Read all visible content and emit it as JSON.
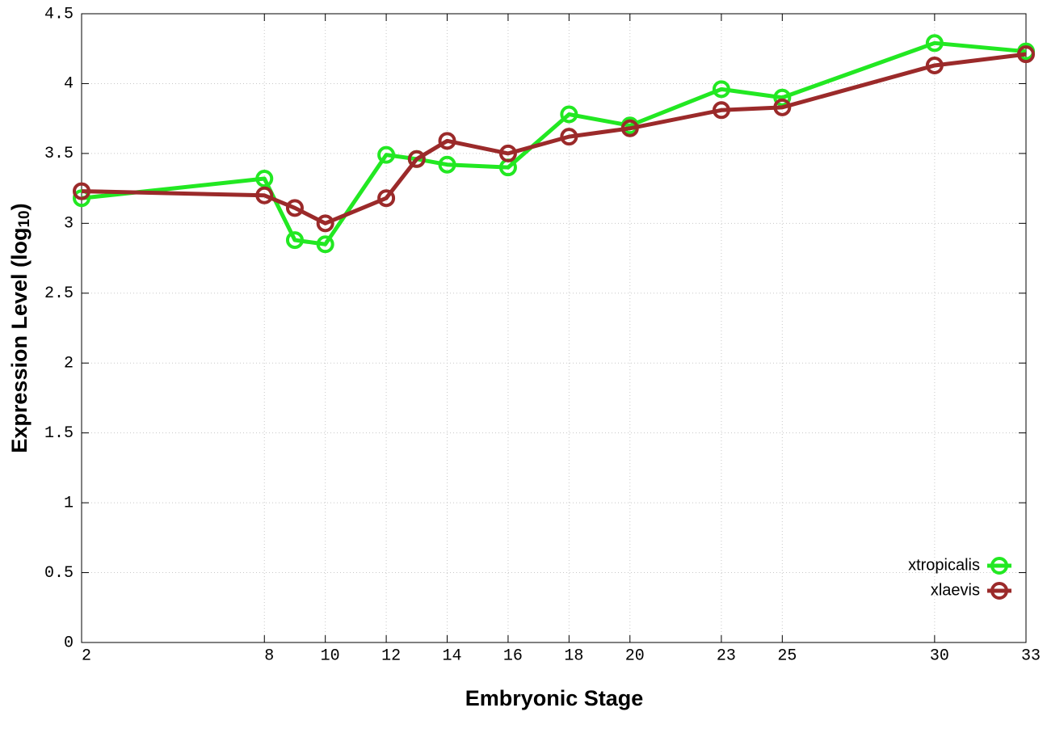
{
  "chart_data": {
    "type": "line",
    "xlabel": "Embryonic Stage",
    "ylabel": [
      "Expression Level (log",
      "10",
      ")"
    ],
    "x": [
      2,
      8,
      9,
      10,
      12,
      13,
      14,
      16,
      18,
      20,
      23,
      25,
      30,
      33
    ],
    "series": [
      {
        "name": "xtropicalis",
        "color": "#22e822",
        "values": [
          3.18,
          3.32,
          2.88,
          2.85,
          3.49,
          3.46,
          3.42,
          3.4,
          3.78,
          3.7,
          3.96,
          3.9,
          4.29,
          4.23
        ]
      },
      {
        "name": "xlaevis",
        "color": "#9b2a2a",
        "values": [
          3.23,
          3.2,
          3.11,
          3.0,
          3.18,
          3.46,
          3.59,
          3.5,
          3.62,
          3.68,
          3.81,
          3.83,
          4.13,
          4.21
        ]
      }
    ],
    "xlim": [
      2,
      33
    ],
    "xticks": [
      2,
      8,
      10,
      12,
      14,
      16,
      18,
      20,
      23,
      25,
      30,
      33
    ],
    "ylim": [
      0,
      4.5
    ],
    "yticks": [
      0,
      0.5,
      1,
      1.5,
      2,
      2.5,
      3,
      3.5,
      4,
      4.5
    ],
    "grid": true,
    "legend": "bottom-right"
  }
}
